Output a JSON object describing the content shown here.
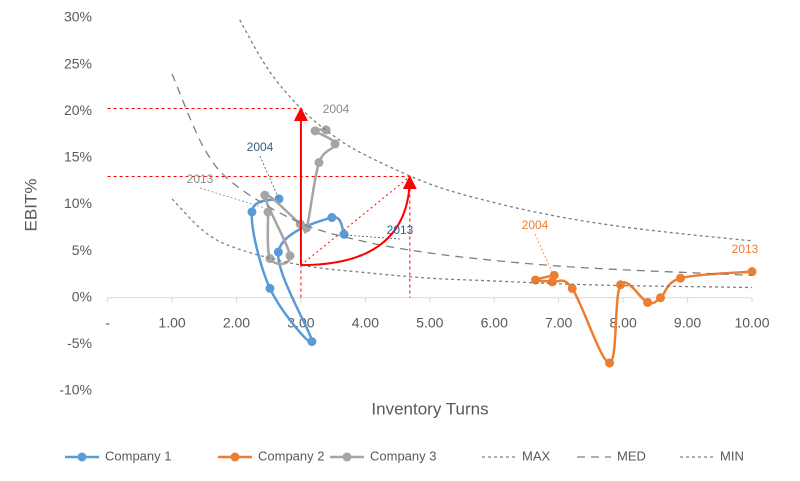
{
  "chart_data": {
    "type": "scatter",
    "x_label": "Inventory Turns",
    "y_label": "EBIT%",
    "xlim": [
      0,
      10
    ],
    "ylim": [
      -10,
      30
    ],
    "xticks": [
      {
        "value": 0,
        "label": "-"
      },
      {
        "value": 1,
        "label": "1.00"
      },
      {
        "value": 2,
        "label": "2.00"
      },
      {
        "value": 3,
        "label": "3.00"
      },
      {
        "value": 4,
        "label": "4.00"
      },
      {
        "value": 5,
        "label": "5.00"
      },
      {
        "value": 6,
        "label": "6.00"
      },
      {
        "value": 7,
        "label": "7.00"
      },
      {
        "value": 8,
        "label": "8.00"
      },
      {
        "value": 9,
        "label": "9.00"
      },
      {
        "value": 10,
        "label": "10.00"
      }
    ],
    "yticks": [
      {
        "value": -10,
        "label": "-10%"
      },
      {
        "value": -5,
        "label": "-5%"
      },
      {
        "value": 0,
        "label": "0%"
      },
      {
        "value": 5,
        "label": "5%"
      },
      {
        "value": 10,
        "label": "10%"
      },
      {
        "value": 15,
        "label": "15%"
      },
      {
        "value": 20,
        "label": "20%"
      },
      {
        "value": 25,
        "label": "25%"
      },
      {
        "value": 30,
        "label": "30%"
      }
    ],
    "series": [
      {
        "name": "Company 1",
        "color": "#5b9bd5",
        "line_style": "solid",
        "markers": true,
        "x": [
          2.66,
          2.24,
          2.52,
          3.17,
          2.65,
          3.48,
          3.67
        ],
        "values": [
          10.6,
          9.2,
          1.0,
          -4.7,
          4.9,
          8.6,
          6.8
        ]
      },
      {
        "name": "Company 2",
        "color": "#ed7d31",
        "line_style": "solid",
        "markers": true,
        "x": [
          6.93,
          6.64,
          6.9,
          7.21,
          7.79,
          7.96,
          8.38,
          8.58,
          8.89,
          10.0
        ],
        "values": [
          2.4,
          1.9,
          1.7,
          1.0,
          -7.0,
          1.4,
          -0.5,
          0.0,
          2.1,
          2.8
        ]
      },
      {
        "name": "Company 3",
        "color": "#a5a5a5",
        "line_style": "solid",
        "markers": true,
        "x": [
          3.39,
          3.22,
          3.53,
          3.28,
          3.09,
          2.99,
          2.44,
          2.83,
          2.52,
          2.49
        ],
        "values": [
          18.0,
          17.9,
          16.5,
          14.5,
          7.5,
          7.9,
          11.0,
          4.5,
          4.2,
          9.2
        ]
      },
      {
        "name": "MAX",
        "color": "#7f7f7f",
        "line_style": "dotted",
        "markers": false,
        "x": [
          2.05,
          2.5,
          3,
          3.5,
          4,
          5,
          6,
          7,
          8,
          9,
          10
        ],
        "values": [
          29.8,
          24.4,
          20.3,
          17.4,
          15.3,
          12.2,
          10.2,
          8.7,
          7.6,
          6.8,
          6.1
        ]
      },
      {
        "name": "MED",
        "color": "#7f7f7f",
        "line_style": "dashed",
        "markers": false,
        "x": [
          1,
          1.5,
          2,
          3,
          4,
          5,
          6,
          7,
          8,
          9,
          10
        ],
        "values": [
          24,
          16,
          12,
          8,
          6,
          4.8,
          4,
          3.4,
          3,
          2.7,
          2.4
        ]
      },
      {
        "name": "MIN",
        "color": "#7f7f7f",
        "line_style": "dotted",
        "markers": false,
        "x": [
          1,
          1.5,
          2,
          3,
          4,
          5,
          6,
          7,
          8,
          9,
          10
        ],
        "values": [
          10.6,
          7.1,
          5.3,
          3.5,
          2.7,
          2.1,
          1.8,
          1.5,
          1.3,
          1.2,
          1.1
        ]
      }
    ],
    "arrows": [
      {
        "color": "#ff0000",
        "x": [
          3.0,
          3.0
        ],
        "y": [
          3.5,
          20.3
        ]
      },
      {
        "color": "#ff0000",
        "x": [
          3.0,
          4.69
        ],
        "y": [
          3.5,
          13.0
        ]
      }
    ],
    "annotations": [
      {
        "text": "2004",
        "color": "#2e5f8a"
      },
      {
        "text": "2013",
        "color": "#2e5f8a"
      },
      {
        "text": "2004",
        "color": "#8c8c8c"
      },
      {
        "text": "2013",
        "color": "#8c8c8c"
      },
      {
        "text": "2004",
        "color": "#ed7d31"
      },
      {
        "text": "2013",
        "color": "#ed7d31"
      }
    ]
  }
}
